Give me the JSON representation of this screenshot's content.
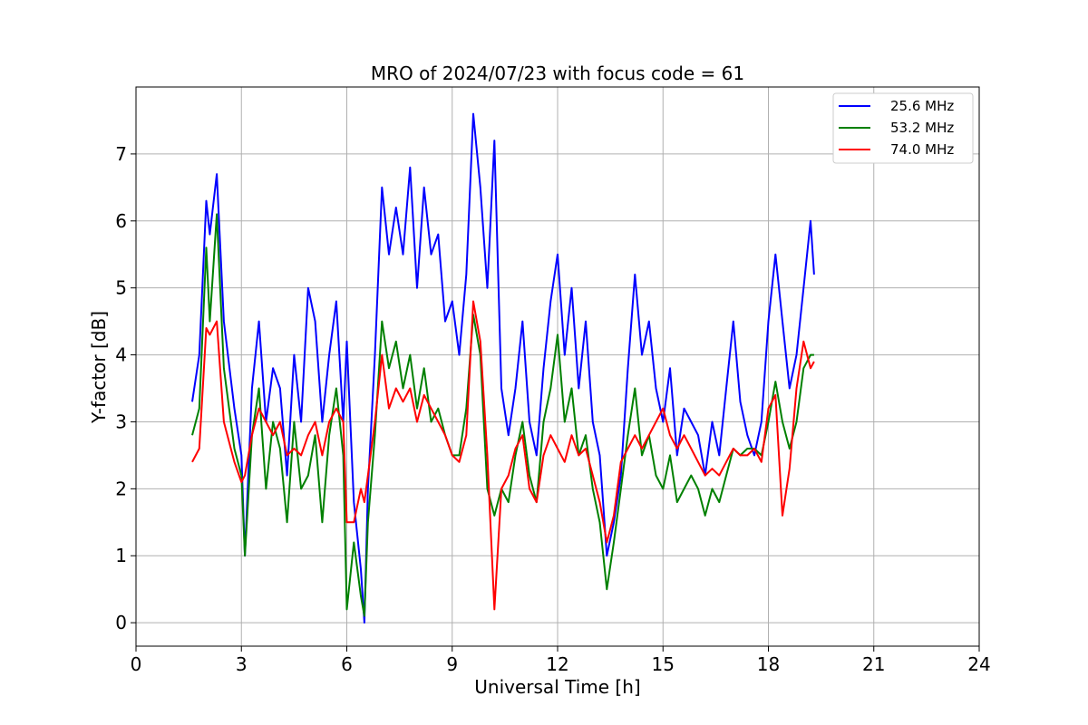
{
  "chart_data": {
    "type": "line",
    "title": "MRO of 2024/07/23 with focus code = 61",
    "xlabel": "Universal Time [h]",
    "ylabel": "Y-factor [dB]",
    "xlim": [
      0,
      24
    ],
    "ylim": [
      -0.35,
      8.0
    ],
    "xticks": [
      0,
      3,
      6,
      9,
      12,
      15,
      18,
      21,
      24
    ],
    "yticks": [
      0,
      1,
      2,
      3,
      4,
      5,
      6,
      7
    ],
    "grid": true,
    "legend": "top-right",
    "series": [
      {
        "name": "25.6 MHz",
        "color": "#0000ff",
        "x": [
          1.6,
          1.8,
          2.0,
          2.1,
          2.3,
          2.5,
          2.8,
          3.0,
          3.1,
          3.3,
          3.5,
          3.7,
          3.9,
          4.1,
          4.3,
          4.5,
          4.7,
          4.9,
          5.1,
          5.3,
          5.5,
          5.7,
          5.9,
          6.0,
          6.2,
          6.4,
          6.5,
          6.6,
          6.8,
          7.0,
          7.2,
          7.4,
          7.6,
          7.8,
          8.0,
          8.2,
          8.4,
          8.6,
          8.8,
          9.0,
          9.2,
          9.4,
          9.6,
          9.8,
          10.0,
          10.2,
          10.4,
          10.6,
          10.8,
          11.0,
          11.2,
          11.4,
          11.6,
          11.8,
          12.0,
          12.2,
          12.4,
          12.6,
          12.8,
          13.0,
          13.2,
          13.4,
          13.6,
          13.8,
          14.0,
          14.2,
          14.4,
          14.6,
          14.8,
          15.0,
          15.2,
          15.4,
          15.6,
          15.8,
          16.0,
          16.2,
          16.4,
          16.6,
          16.8,
          17.0,
          17.2,
          17.4,
          17.6,
          17.8,
          18.0,
          18.2,
          18.4,
          18.6,
          18.8,
          19.0,
          19.2,
          19.3
        ],
        "y": [
          3.3,
          4.0,
          6.3,
          5.8,
          6.7,
          4.5,
          3.2,
          2.5,
          1.0,
          3.5,
          4.5,
          3.0,
          3.8,
          3.5,
          2.2,
          4.0,
          3.0,
          5.0,
          4.5,
          3.0,
          4.0,
          4.8,
          3.0,
          4.2,
          1.8,
          0.8,
          0.0,
          2.0,
          4.0,
          6.5,
          5.5,
          6.2,
          5.5,
          6.8,
          5.0,
          6.5,
          5.5,
          5.8,
          4.5,
          4.8,
          4.0,
          5.2,
          7.6,
          6.5,
          5.0,
          7.2,
          3.5,
          2.8,
          3.5,
          4.5,
          3.0,
          2.5,
          3.8,
          4.8,
          5.5,
          4.0,
          5.0,
          3.5,
          4.5,
          3.0,
          2.5,
          1.0,
          1.5,
          2.2,
          3.8,
          5.2,
          4.0,
          4.5,
          3.5,
          3.0,
          3.8,
          2.5,
          3.2,
          3.0,
          2.8,
          2.2,
          3.0,
          2.5,
          3.5,
          4.5,
          3.3,
          2.8,
          2.5,
          3.0,
          4.5,
          5.5,
          4.5,
          3.5,
          4.0,
          5.0,
          6.0,
          5.2
        ],
        "label": "25.6 MHz"
      },
      {
        "name": "53.2 MHz",
        "color": "#008000",
        "x": [
          1.6,
          1.8,
          2.0,
          2.1,
          2.3,
          2.5,
          2.8,
          3.0,
          3.1,
          3.3,
          3.5,
          3.7,
          3.9,
          4.1,
          4.3,
          4.5,
          4.7,
          4.9,
          5.1,
          5.3,
          5.5,
          5.7,
          5.9,
          6.0,
          6.2,
          6.4,
          6.5,
          6.6,
          6.8,
          7.0,
          7.2,
          7.4,
          7.6,
          7.8,
          8.0,
          8.2,
          8.4,
          8.6,
          8.8,
          9.0,
          9.2,
          9.4,
          9.6,
          9.8,
          10.0,
          10.2,
          10.4,
          10.6,
          10.8,
          11.0,
          11.2,
          11.4,
          11.6,
          11.8,
          12.0,
          12.2,
          12.4,
          12.6,
          12.8,
          13.0,
          13.2,
          13.4,
          13.6,
          13.8,
          14.0,
          14.2,
          14.4,
          14.6,
          14.8,
          15.0,
          15.2,
          15.4,
          15.6,
          15.8,
          16.0,
          16.2,
          16.4,
          16.6,
          16.8,
          17.0,
          17.2,
          17.4,
          17.6,
          17.8,
          18.0,
          18.2,
          18.4,
          18.6,
          18.8,
          19.0,
          19.2,
          19.3
        ],
        "y": [
          2.8,
          3.2,
          5.6,
          4.5,
          6.1,
          3.8,
          2.6,
          2.2,
          1.0,
          2.8,
          3.5,
          2.0,
          3.0,
          2.6,
          1.5,
          3.0,
          2.0,
          2.2,
          2.8,
          1.5,
          2.8,
          3.5,
          2.5,
          0.2,
          1.2,
          0.4,
          0.1,
          1.5,
          2.8,
          4.5,
          3.8,
          4.2,
          3.5,
          4.0,
          3.2,
          3.8,
          3.0,
          3.2,
          2.8,
          2.5,
          2.5,
          3.2,
          4.6,
          4.0,
          2.0,
          1.6,
          2.0,
          1.8,
          2.5,
          3.0,
          2.2,
          1.8,
          3.0,
          3.5,
          4.3,
          3.0,
          3.5,
          2.5,
          2.8,
          2.0,
          1.5,
          0.5,
          1.2,
          2.0,
          2.8,
          3.5,
          2.5,
          2.8,
          2.2,
          2.0,
          2.5,
          1.8,
          2.0,
          2.2,
          2.0,
          1.6,
          2.0,
          1.8,
          2.2,
          2.6,
          2.5,
          2.6,
          2.6,
          2.5,
          3.0,
          3.6,
          3.0,
          2.6,
          3.0,
          3.8,
          4.0,
          4.0
        ],
        "label": "53.2 MHz"
      },
      {
        "name": "74.0 MHz",
        "color": "#ff0000",
        "x": [
          1.6,
          1.8,
          2.0,
          2.1,
          2.3,
          2.5,
          2.8,
          3.0,
          3.1,
          3.3,
          3.5,
          3.7,
          3.9,
          4.1,
          4.3,
          4.5,
          4.7,
          4.9,
          5.1,
          5.3,
          5.5,
          5.7,
          5.9,
          6.0,
          6.2,
          6.4,
          6.5,
          6.6,
          6.8,
          7.0,
          7.2,
          7.4,
          7.6,
          7.8,
          8.0,
          8.2,
          8.4,
          8.6,
          8.8,
          9.0,
          9.2,
          9.4,
          9.6,
          9.8,
          10.0,
          10.2,
          10.4,
          10.6,
          10.8,
          11.0,
          11.2,
          11.4,
          11.6,
          11.8,
          12.0,
          12.2,
          12.4,
          12.6,
          12.8,
          13.0,
          13.2,
          13.4,
          13.6,
          13.8,
          14.0,
          14.2,
          14.4,
          14.6,
          14.8,
          15.0,
          15.2,
          15.4,
          15.6,
          15.8,
          16.0,
          16.2,
          16.4,
          16.6,
          16.8,
          17.0,
          17.2,
          17.4,
          17.6,
          17.8,
          18.0,
          18.2,
          18.4,
          18.6,
          18.8,
          19.0,
          19.2,
          19.3
        ],
        "y": [
          2.4,
          2.6,
          4.4,
          4.3,
          4.5,
          3.0,
          2.4,
          2.1,
          2.2,
          2.8,
          3.2,
          3.0,
          2.8,
          3.0,
          2.5,
          2.6,
          2.5,
          2.8,
          3.0,
          2.5,
          3.0,
          3.2,
          3.0,
          1.5,
          1.5,
          2.0,
          1.8,
          2.2,
          3.0,
          4.0,
          3.2,
          3.5,
          3.3,
          3.5,
          3.0,
          3.4,
          3.2,
          3.0,
          2.8,
          2.5,
          2.4,
          2.8,
          4.8,
          4.2,
          2.5,
          0.2,
          2.0,
          2.2,
          2.6,
          2.8,
          2.0,
          1.8,
          2.5,
          2.8,
          2.6,
          2.4,
          2.8,
          2.5,
          2.6,
          2.2,
          1.8,
          1.2,
          1.6,
          2.4,
          2.6,
          2.8,
          2.6,
          2.8,
          3.0,
          3.2,
          2.8,
          2.6,
          2.8,
          2.6,
          2.4,
          2.2,
          2.3,
          2.2,
          2.4,
          2.6,
          2.5,
          2.5,
          2.6,
          2.4,
          3.2,
          3.4,
          1.6,
          2.3,
          3.5,
          4.2,
          3.8,
          3.9
        ],
        "label": "74.0 MHz"
      }
    ]
  }
}
